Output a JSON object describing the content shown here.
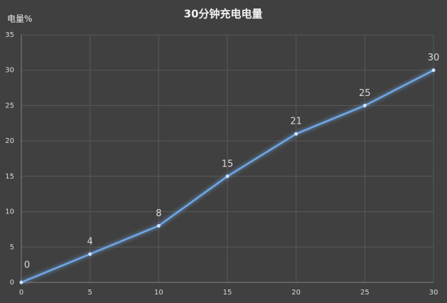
{
  "chart_data": {
    "type": "line",
    "title": "30分钟充电电量",
    "y_label": "电量%",
    "x": [
      0,
      5,
      10,
      15,
      20,
      25,
      30
    ],
    "values": [
      0,
      4,
      8,
      15,
      21,
      25,
      30
    ],
    "color": "#6fa8e6",
    "xlim": [
      0,
      30
    ],
    "xticks": [
      0,
      5,
      10,
      15,
      20,
      25,
      30
    ],
    "ylim": [
      0,
      35
    ],
    "yticks": [
      0,
      5,
      10,
      15,
      20,
      25,
      30,
      35
    ],
    "grid": true,
    "data_labels": true
  }
}
